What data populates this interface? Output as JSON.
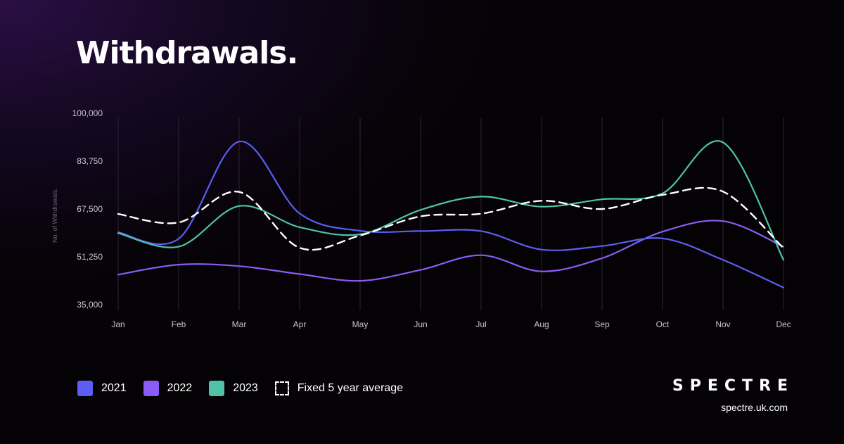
{
  "title": "Withdrawals.",
  "brand": {
    "name": "SPECTRE",
    "url": "spectre.uk.com"
  },
  "chart_data": {
    "type": "line",
    "title": "Withdrawals.",
    "ylabel": "No. of Withdrawals.",
    "xlabel": "",
    "categories": [
      "Jan",
      "Feb",
      "Mar",
      "Apr",
      "May",
      "Jun",
      "Jul",
      "Aug",
      "Sep",
      "Oct",
      "Nov",
      "Dec"
    ],
    "yticks": [
      35000,
      51250,
      67500,
      83750,
      100000
    ],
    "ytick_labels": [
      "35,000",
      "51,250",
      "67,500",
      "83,750",
      "100,000"
    ],
    "ylim": [
      35000,
      100000
    ],
    "grid": "vertical",
    "legend_position": "bottom-left",
    "series": [
      {
        "name": "2021",
        "color": "#5b5ef0",
        "dashed": false,
        "values": [
          59600,
          57400,
          90400,
          66000,
          60100,
          60000,
          60000,
          53700,
          54900,
          57500,
          50200,
          40800
        ]
      },
      {
        "name": "2022",
        "color": "#8a5cf5",
        "dashed": false,
        "values": [
          45200,
          48600,
          48100,
          45400,
          43100,
          46800,
          51800,
          46300,
          50800,
          59800,
          63400,
          54700
        ]
      },
      {
        "name": "2023",
        "color": "#4fc3a8",
        "dashed": false,
        "values": [
          59300,
          54700,
          68500,
          61300,
          58900,
          67200,
          71700,
          68300,
          70800,
          72800,
          90100,
          50200
        ]
      },
      {
        "name": "Fixed 5 year average",
        "color": "#ffffff",
        "dashed": true,
        "values": [
          65800,
          62900,
          73300,
          54300,
          58500,
          65000,
          65900,
          70300,
          67500,
          72300,
          73400,
          54200
        ]
      }
    ]
  }
}
